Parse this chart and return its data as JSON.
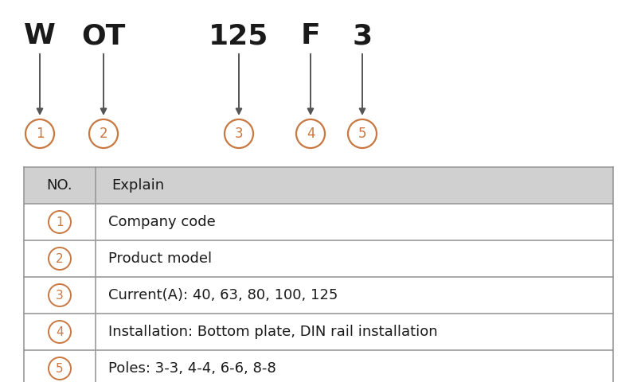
{
  "bg_color": "#ffffff",
  "labels": [
    "W",
    "OT",
    "125",
    "F",
    "3"
  ],
  "label_color": "#1a1a1a",
  "circle_color": "#c87840",
  "arrow_color": "#555555",
  "table_header_bg": "#d0d0d0",
  "table_row_bg": "#ffffff",
  "table_line_color": "#999999",
  "table_header": [
    "NO.",
    "Explain"
  ],
  "table_rows": [
    [
      "1",
      "Company code"
    ],
    [
      "2",
      "Product model"
    ],
    [
      "3",
      "Current(A): 40, 63, 80, 100, 125"
    ],
    [
      "4",
      "Installation: Bottom plate, DIN rail installation"
    ],
    [
      "5",
      "Poles: 3-3, 4-4, 6-6, 8-8"
    ]
  ],
  "fig_width": 8.0,
  "fig_height": 4.8,
  "dpi": 100
}
